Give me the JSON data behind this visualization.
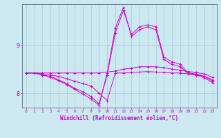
{
  "background_color": "#cce8f0",
  "grid_color": "#aaccdd",
  "line_color": "#cc00cc",
  "xlabel": "Windchill (Refroidissement éolien,°C)",
  "yticks": [
    8,
    9
  ],
  "xlim": [
    -0.5,
    23.5
  ],
  "ylim": [
    7.7,
    9.85
  ],
  "hours": [
    0,
    1,
    2,
    3,
    4,
    5,
    6,
    7,
    8,
    9,
    10,
    11,
    12,
    13,
    14,
    15,
    16,
    17,
    18,
    19,
    20,
    21,
    22,
    23
  ],
  "line1": [
    8.42,
    8.42,
    8.42,
    8.42,
    8.42,
    8.42,
    8.42,
    8.42,
    8.42,
    8.42,
    8.44,
    8.46,
    8.5,
    8.52,
    8.55,
    8.55,
    8.55,
    8.53,
    8.5,
    8.48,
    8.45,
    8.43,
    8.4,
    8.33
  ],
  "line2": [
    8.42,
    8.42,
    8.4,
    8.38,
    8.35,
    8.3,
    8.25,
    8.2,
    8.15,
    8.0,
    7.85,
    8.42,
    8.42,
    8.43,
    8.44,
    8.45,
    8.44,
    8.43,
    8.42,
    8.42,
    8.4,
    8.38,
    8.35,
    8.28
  ],
  "line3": [
    8.42,
    8.42,
    8.38,
    8.35,
    8.28,
    8.2,
    8.1,
    8.03,
    7.93,
    7.78,
    8.38,
    9.25,
    9.72,
    9.22,
    9.38,
    9.42,
    9.38,
    8.75,
    8.65,
    8.6,
    8.42,
    8.4,
    8.35,
    8.25
  ],
  "line4": [
    8.42,
    8.42,
    8.38,
    8.33,
    8.26,
    8.18,
    8.08,
    7.98,
    7.88,
    7.75,
    8.42,
    9.35,
    9.78,
    9.18,
    9.32,
    9.38,
    9.32,
    8.7,
    8.6,
    8.55,
    8.4,
    8.38,
    8.32,
    8.22
  ]
}
